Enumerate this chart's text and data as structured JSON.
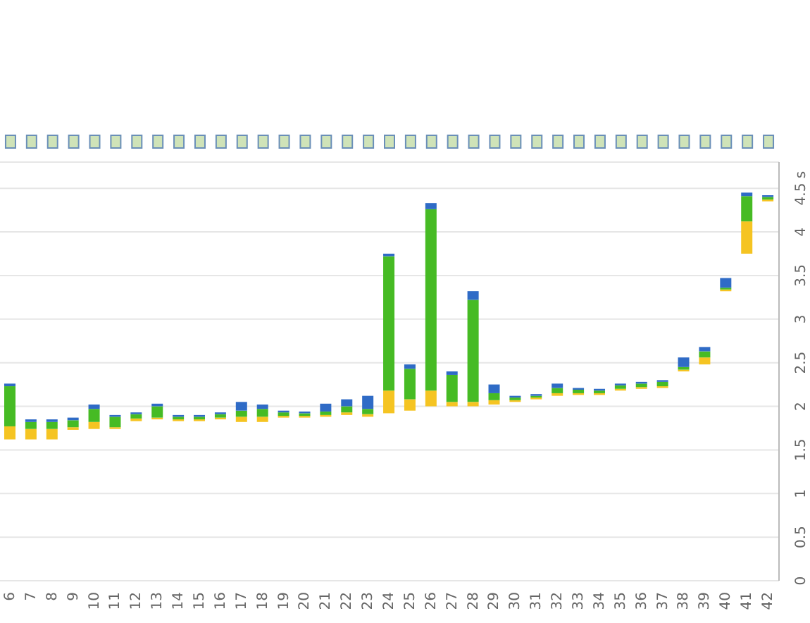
{
  "chart_data": {
    "type": "bar",
    "categories": [
      "6",
      "7",
      "8",
      "9",
      "10",
      "11",
      "12",
      "13",
      "14",
      "15",
      "16",
      "17",
      "18",
      "19",
      "20",
      "21",
      "22",
      "23",
      "24",
      "25",
      "26",
      "27",
      "28",
      "29",
      "30",
      "31",
      "32",
      "33",
      "34",
      "35",
      "36",
      "37",
      "38",
      "39",
      "40",
      "41",
      "42"
    ],
    "series": [
      {
        "color": "#f5c422",
        "base": [
          1.62,
          1.62,
          1.62,
          1.73,
          1.74,
          1.74,
          1.83,
          1.85,
          1.83,
          1.83,
          1.85,
          1.82,
          1.82,
          1.87,
          1.87,
          1.88,
          1.9,
          1.88,
          1.92,
          1.95,
          2.0,
          2.0,
          2.0,
          2.02,
          2.05,
          2.08,
          2.12,
          2.13,
          2.13,
          2.18,
          2.2,
          2.21,
          2.4,
          2.48,
          3.32,
          3.75,
          4.35
        ],
        "values": [
          0.15,
          0.12,
          0.12,
          0.03,
          0.08,
          0.02,
          0.03,
          0.02,
          0.02,
          0.02,
          0.02,
          0.06,
          0.06,
          0.02,
          0.02,
          0.02,
          0.03,
          0.03,
          0.26,
          0.13,
          0.18,
          0.05,
          0.05,
          0.05,
          0.02,
          0.02,
          0.03,
          0.02,
          0.02,
          0.02,
          0.02,
          0.02,
          0.02,
          0.08,
          0.02,
          0.37,
          0.02
        ]
      },
      {
        "color": "#46bb24",
        "base": [
          1.77,
          1.74,
          1.74,
          1.76,
          1.82,
          1.76,
          1.86,
          1.87,
          1.85,
          1.85,
          1.87,
          1.88,
          1.88,
          1.89,
          1.89,
          1.9,
          1.93,
          1.91,
          2.18,
          2.08,
          2.18,
          2.05,
          2.05,
          2.07,
          2.07,
          2.1,
          2.15,
          2.15,
          2.15,
          2.2,
          2.22,
          2.23,
          2.42,
          2.56,
          3.34,
          4.12,
          4.37
        ],
        "values": [
          0.46,
          0.08,
          0.08,
          0.08,
          0.15,
          0.12,
          0.05,
          0.13,
          0.03,
          0.03,
          0.04,
          0.07,
          0.09,
          0.04,
          0.03,
          0.04,
          0.07,
          0.06,
          1.54,
          0.35,
          2.08,
          0.31,
          1.17,
          0.08,
          0.03,
          0.02,
          0.06,
          0.04,
          0.03,
          0.04,
          0.04,
          0.05,
          0.03,
          0.07,
          0.02,
          0.29,
          0.03
        ]
      },
      {
        "color": "#2f6bc6",
        "base": [
          2.23,
          1.82,
          1.82,
          1.84,
          1.97,
          1.88,
          1.91,
          2.0,
          1.88,
          1.88,
          1.91,
          1.95,
          1.97,
          1.93,
          1.92,
          1.94,
          2.0,
          1.97,
          3.72,
          2.43,
          4.26,
          2.36,
          3.22,
          2.15,
          2.1,
          2.12,
          2.21,
          2.19,
          2.18,
          2.24,
          2.26,
          2.28,
          2.45,
          2.63,
          3.36,
          4.41,
          4.4
        ],
        "values": [
          0.03,
          0.03,
          0.03,
          0.03,
          0.05,
          0.02,
          0.02,
          0.03,
          0.02,
          0.02,
          0.02,
          0.1,
          0.05,
          0.02,
          0.02,
          0.09,
          0.08,
          0.15,
          0.03,
          0.05,
          0.07,
          0.04,
          0.1,
          0.1,
          0.02,
          0.02,
          0.05,
          0.02,
          0.02,
          0.02,
          0.02,
          0.02,
          0.11,
          0.05,
          0.11,
          0.04,
          0.02
        ]
      }
    ],
    "ylim": [
      0,
      4.8
    ],
    "yticks": [
      0,
      0.5,
      1,
      1.5,
      2,
      2.5,
      3,
      3.5,
      4,
      {
        "value": 4.5,
        "label": "4.5 s"
      }
    ],
    "grid": "y"
  }
}
